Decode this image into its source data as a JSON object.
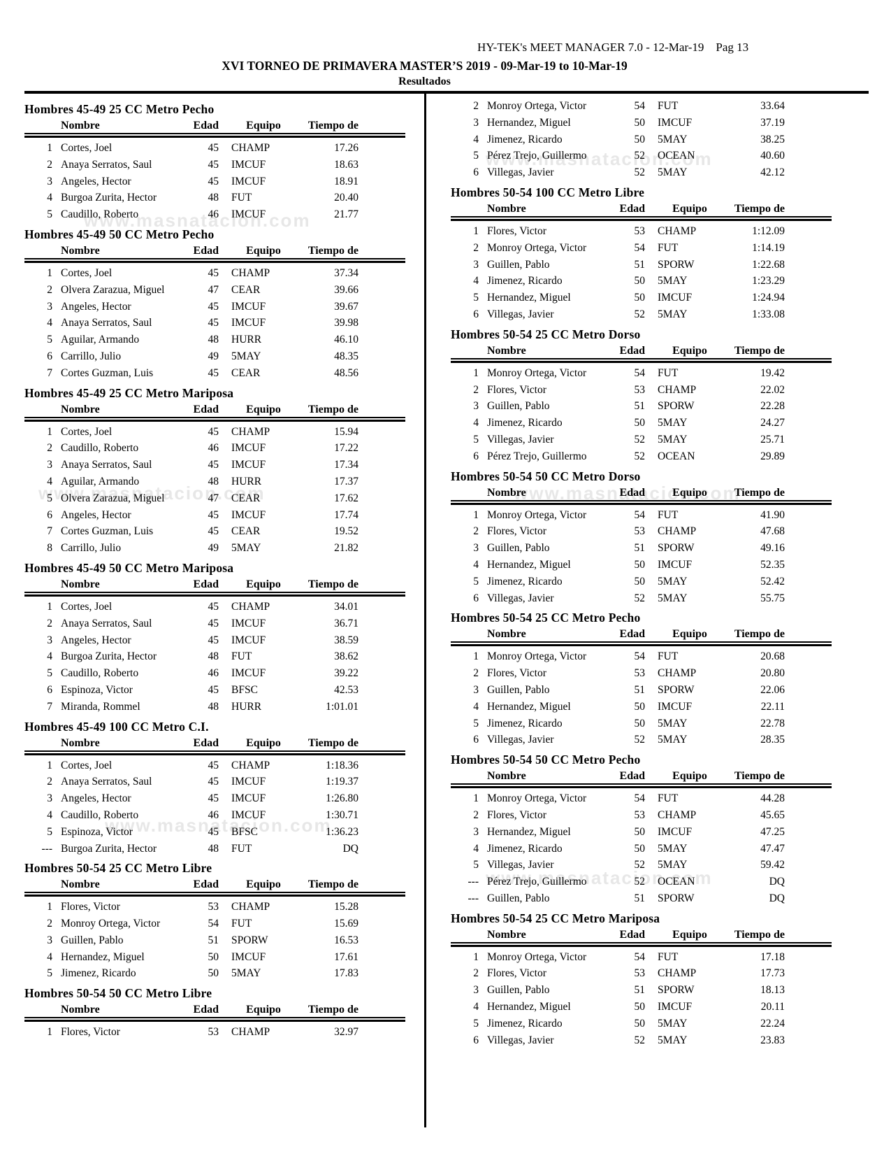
{
  "page": {
    "meta": "HY-TEK's MEET MANAGER 7.0 - 12-Mar-19    Pag 13",
    "title": "XVI TORNEO DE PRIMAVERA MASTER’S 2019 - 09-Mar-19 to 10-Mar-19",
    "subtitle": "Resultados",
    "watermark": "www.masnatacion.com"
  },
  "table_header": {
    "nombre": "Nombre",
    "edad": "Edad",
    "equipo": "Equipo",
    "tiempo": "Tiempo de"
  },
  "left_sections": [
    {
      "title": "Hombres 45-49 25 CC Metro Pecho",
      "header": true,
      "rows": [
        [
          "1",
          "Cortes, Joel",
          "45",
          "CHAMP",
          "17.26"
        ],
        [
          "2",
          "Anaya Serratos, Saul",
          "45",
          "IMCUF",
          "18.63"
        ],
        [
          "3",
          "Angeles, Hector",
          "45",
          "IMCUF",
          "18.91"
        ],
        [
          "4",
          "Burgoa Zurita, Hector",
          "48",
          "FUT",
          "20.40"
        ],
        [
          "5",
          "Caudillo, Roberto",
          "46",
          "IMCUF",
          "21.77"
        ]
      ]
    },
    {
      "title": "Hombres 45-49 50 CC Metro Pecho",
      "header": true,
      "rows": [
        [
          "1",
          "Cortes, Joel",
          "45",
          "CHAMP",
          "37.34"
        ],
        [
          "2",
          "Olvera Zarazua, Miguel",
          "47",
          "CEAR",
          "39.66"
        ],
        [
          "3",
          "Angeles, Hector",
          "45",
          "IMCUF",
          "39.67"
        ],
        [
          "4",
          "Anaya Serratos, Saul",
          "45",
          "IMCUF",
          "39.98"
        ],
        [
          "5",
          "Aguilar, Armando",
          "48",
          "HURR",
          "46.10"
        ],
        [
          "6",
          "Carrillo, Julio",
          "49",
          "5MAY",
          "48.35"
        ],
        [
          "7",
          "Cortes Guzman, Luis",
          "45",
          "CEAR",
          "48.56"
        ]
      ]
    },
    {
      "title": "Hombres 45-49 25 CC Metro Mariposa",
      "header": true,
      "rows": [
        [
          "1",
          "Cortes, Joel",
          "45",
          "CHAMP",
          "15.94"
        ],
        [
          "2",
          "Caudillo, Roberto",
          "46",
          "IMCUF",
          "17.22"
        ],
        [
          "3",
          "Anaya Serratos, Saul",
          "45",
          "IMCUF",
          "17.34"
        ],
        [
          "4",
          "Aguilar, Armando",
          "48",
          "HURR",
          "17.37"
        ],
        [
          "5",
          "Olvera Zarazua, Miguel",
          "47",
          "CEAR",
          "17.62"
        ],
        [
          "6",
          "Angeles, Hector",
          "45",
          "IMCUF",
          "17.74"
        ],
        [
          "7",
          "Cortes Guzman, Luis",
          "45",
          "CEAR",
          "19.52"
        ],
        [
          "8",
          "Carrillo, Julio",
          "49",
          "5MAY",
          "21.82"
        ]
      ]
    },
    {
      "title": "Hombres 45-49 50 CC Metro Mariposa",
      "header": true,
      "rows": [
        [
          "1",
          "Cortes, Joel",
          "45",
          "CHAMP",
          "34.01"
        ],
        [
          "2",
          "Anaya Serratos, Saul",
          "45",
          "IMCUF",
          "36.71"
        ],
        [
          "3",
          "Angeles, Hector",
          "45",
          "IMCUF",
          "38.59"
        ],
        [
          "4",
          "Burgoa Zurita, Hector",
          "48",
          "FUT",
          "38.62"
        ],
        [
          "5",
          "Caudillo, Roberto",
          "46",
          "IMCUF",
          "39.22"
        ],
        [
          "6",
          "Espinoza, Victor",
          "45",
          "BFSC",
          "42.53"
        ],
        [
          "7",
          "Miranda, Rommel",
          "48",
          "HURR",
          "1:01.01"
        ]
      ]
    },
    {
      "title": "Hombres 45-49 100 CC Metro C.I.",
      "header": true,
      "rows": [
        [
          "1",
          "Cortes, Joel",
          "45",
          "CHAMP",
          "1:18.36"
        ],
        [
          "2",
          "Anaya Serratos, Saul",
          "45",
          "IMCUF",
          "1:19.37"
        ],
        [
          "3",
          "Angeles, Hector",
          "45",
          "IMCUF",
          "1:26.80"
        ],
        [
          "4",
          "Caudillo, Roberto",
          "46",
          "IMCUF",
          "1:30.71"
        ],
        [
          "5",
          "Espinoza, Victor",
          "45",
          "BFSC",
          "1:36.23"
        ],
        [
          "---",
          "Burgoa Zurita, Hector",
          "48",
          "FUT",
          "DQ"
        ]
      ]
    },
    {
      "title": "Hombres 50-54 25 CC Metro Libre",
      "header": true,
      "rows": [
        [
          "1",
          "Flores, Victor",
          "53",
          "CHAMP",
          "15.28"
        ],
        [
          "2",
          "Monroy Ortega, Victor",
          "54",
          "FUT",
          "15.69"
        ],
        [
          "3",
          "Guillen, Pablo",
          "51",
          "SPORW",
          "16.53"
        ],
        [
          "4",
          "Hernandez, Miguel",
          "50",
          "IMCUF",
          "17.61"
        ],
        [
          "5",
          "Jimenez, Ricardo",
          "50",
          "5MAY",
          "17.83"
        ]
      ]
    },
    {
      "title": "Hombres 50-54 50 CC Metro Libre",
      "header": true,
      "rows": [
        [
          "1",
          "Flores, Victor",
          "53",
          "CHAMP",
          "32.97"
        ]
      ]
    }
  ],
  "right_sections": [
    {
      "title": null,
      "header": false,
      "rows": [
        [
          "2",
          "Monroy Ortega, Victor",
          "54",
          "FUT",
          "33.64"
        ],
        [
          "3",
          "Hernandez, Miguel",
          "50",
          "IMCUF",
          "37.19"
        ],
        [
          "4",
          "Jimenez, Ricardo",
          "50",
          "5MAY",
          "38.25"
        ],
        [
          "5",
          "Pérez Trejo, Guillermo",
          "52",
          "OCEAN",
          "40.60"
        ],
        [
          "6",
          "Villegas, Javier",
          "52",
          "5MAY",
          "42.12"
        ]
      ]
    },
    {
      "title": "Hombres 50-54 100 CC Metro Libre",
      "header": true,
      "rows": [
        [
          "1",
          "Flores, Victor",
          "53",
          "CHAMP",
          "1:12.09"
        ],
        [
          "2",
          "Monroy Ortega, Victor",
          "54",
          "FUT",
          "1:14.19"
        ],
        [
          "3",
          "Guillen, Pablo",
          "51",
          "SPORW",
          "1:22.68"
        ],
        [
          "4",
          "Jimenez, Ricardo",
          "50",
          "5MAY",
          "1:23.29"
        ],
        [
          "5",
          "Hernandez, Miguel",
          "50",
          "IMCUF",
          "1:24.94"
        ],
        [
          "6",
          "Villegas, Javier",
          "52",
          "5MAY",
          "1:33.08"
        ]
      ]
    },
    {
      "title": "Hombres 50-54 25 CC Metro Dorso",
      "header": true,
      "rows": [
        [
          "1",
          "Monroy Ortega, Victor",
          "54",
          "FUT",
          "19.42"
        ],
        [
          "2",
          "Flores, Victor",
          "53",
          "CHAMP",
          "22.02"
        ],
        [
          "3",
          "Guillen, Pablo",
          "51",
          "SPORW",
          "22.28"
        ],
        [
          "4",
          "Jimenez, Ricardo",
          "50",
          "5MAY",
          "24.27"
        ],
        [
          "5",
          "Villegas, Javier",
          "52",
          "5MAY",
          "25.71"
        ],
        [
          "6",
          "Pérez Trejo, Guillermo",
          "52",
          "OCEAN",
          "29.89"
        ]
      ]
    },
    {
      "title": "Hombres 50-54 50 CC Metro Dorso",
      "header": true,
      "rows": [
        [
          "1",
          "Monroy Ortega, Victor",
          "54",
          "FUT",
          "41.90"
        ],
        [
          "2",
          "Flores, Victor",
          "53",
          "CHAMP",
          "47.68"
        ],
        [
          "3",
          "Guillen, Pablo",
          "51",
          "SPORW",
          "49.16"
        ],
        [
          "4",
          "Hernandez, Miguel",
          "50",
          "IMCUF",
          "52.35"
        ],
        [
          "5",
          "Jimenez, Ricardo",
          "50",
          "5MAY",
          "52.42"
        ],
        [
          "6",
          "Villegas, Javier",
          "52",
          "5MAY",
          "55.75"
        ]
      ]
    },
    {
      "title": "Hombres 50-54 25 CC Metro Pecho",
      "header": true,
      "rows": [
        [
          "1",
          "Monroy Ortega, Victor",
          "54",
          "FUT",
          "20.68"
        ],
        [
          "2",
          "Flores, Victor",
          "53",
          "CHAMP",
          "20.80"
        ],
        [
          "3",
          "Guillen, Pablo",
          "51",
          "SPORW",
          "22.06"
        ],
        [
          "4",
          "Hernandez, Miguel",
          "50",
          "IMCUF",
          "22.11"
        ],
        [
          "5",
          "Jimenez, Ricardo",
          "50",
          "5MAY",
          "22.78"
        ],
        [
          "6",
          "Villegas, Javier",
          "52",
          "5MAY",
          "28.35"
        ]
      ]
    },
    {
      "title": "Hombres 50-54 50 CC Metro Pecho",
      "header": true,
      "rows": [
        [
          "1",
          "Monroy Ortega, Victor",
          "54",
          "FUT",
          "44.28"
        ],
        [
          "2",
          "Flores, Victor",
          "53",
          "CHAMP",
          "45.65"
        ],
        [
          "3",
          "Hernandez, Miguel",
          "50",
          "IMCUF",
          "47.25"
        ],
        [
          "4",
          "Jimenez, Ricardo",
          "50",
          "5MAY",
          "47.47"
        ],
        [
          "5",
          "Villegas, Javier",
          "52",
          "5MAY",
          "59.42"
        ],
        [
          "---",
          "Pérez Trejo, Guillermo",
          "52",
          "OCEAN",
          "DQ"
        ],
        [
          "---",
          "Guillen, Pablo",
          "51",
          "SPORW",
          "DQ"
        ]
      ]
    },
    {
      "title": "Hombres 50-54 25 CC Metro Mariposa",
      "header": true,
      "rows": [
        [
          "1",
          "Monroy Ortega, Victor",
          "54",
          "FUT",
          "17.18"
        ],
        [
          "2",
          "Flores, Victor",
          "53",
          "CHAMP",
          "17.73"
        ],
        [
          "3",
          "Guillen, Pablo",
          "51",
          "SPORW",
          "18.13"
        ],
        [
          "4",
          "Hernandez, Miguel",
          "50",
          "IMCUF",
          "20.11"
        ],
        [
          "5",
          "Jimenez, Ricardo",
          "50",
          "5MAY",
          "22.24"
        ],
        [
          "6",
          "Villegas, Javier",
          "52",
          "5MAY",
          "23.83"
        ]
      ]
    }
  ]
}
